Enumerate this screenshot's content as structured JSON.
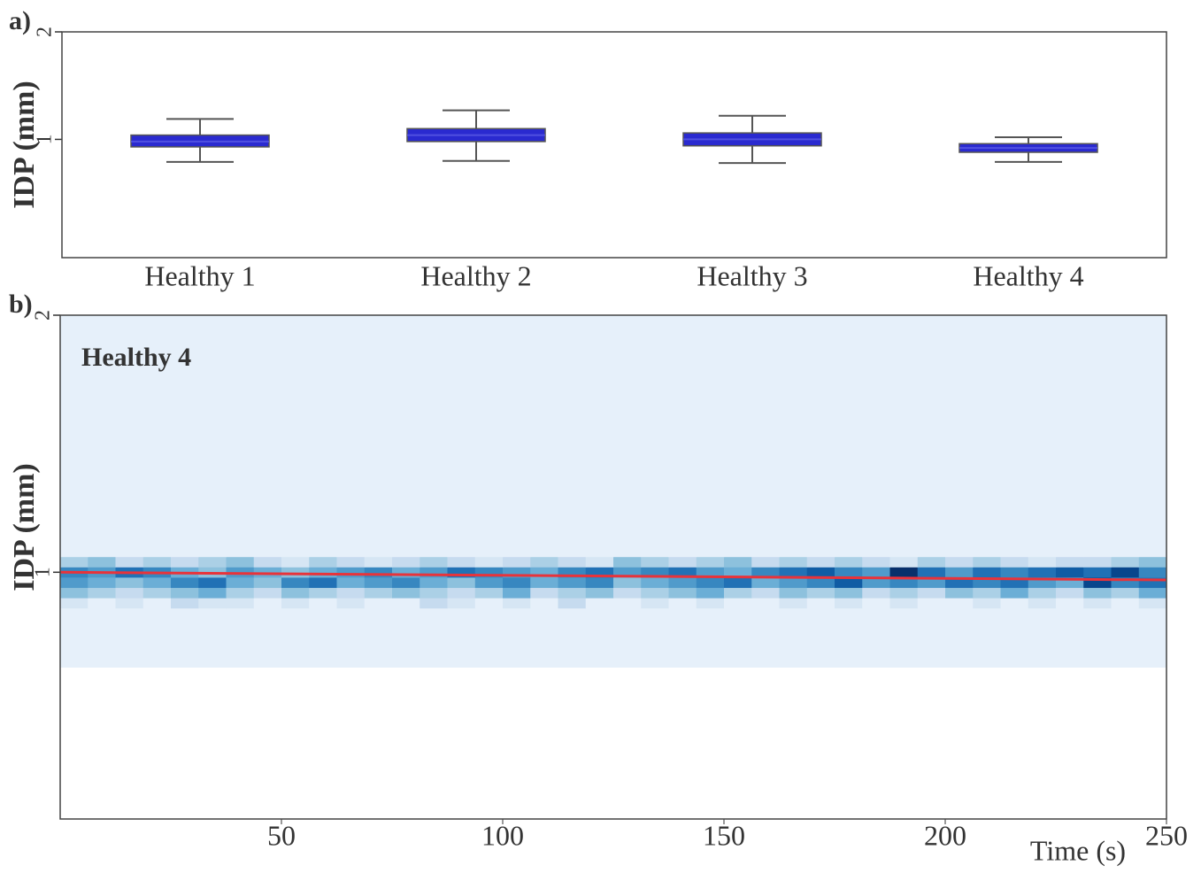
{
  "chart_data": [
    {
      "type": "box",
      "label": "a)",
      "ylabel": "IDP (mm)",
      "categories": [
        "Healthy 1",
        "Healthy 2",
        "Healthy 3",
        "Healthy 4"
      ],
      "whislo": [
        0.79,
        0.8,
        0.78,
        0.79
      ],
      "q1": [
        0.93,
        0.98,
        0.94,
        0.88
      ],
      "median": [
        0.98,
        1.04,
        1.0,
        0.92
      ],
      "q3": [
        1.04,
        1.1,
        1.06,
        0.96
      ],
      "whishi": [
        1.19,
        1.27,
        1.22,
        1.02
      ],
      "color": "#2a2ad0",
      "ylim": [
        -0.1,
        2
      ],
      "yticks": [
        1,
        2
      ]
    },
    {
      "type": "heatmap",
      "label": "b)",
      "ylabel": "IDP (mm)",
      "xlabel": "Time (s)",
      "annotation": "Healthy 4",
      "colormap": "Blues",
      "xbins": [
        0,
        6.25,
        12.5,
        18.75,
        25,
        31.25,
        37.5,
        43.75,
        50,
        56.25,
        62.5,
        68.75,
        75,
        81.25,
        87.5,
        93.75,
        100,
        106.25,
        112.5,
        118.75,
        125,
        131.25,
        137.5,
        143.75,
        150,
        156.25,
        162.5,
        168.75,
        175,
        181.25,
        187.5,
        193.75,
        200,
        206.25,
        212.5,
        218.75,
        225,
        231.25,
        237.5,
        243.75,
        250
      ],
      "ybins": [
        0.63,
        0.86,
        0.9,
        0.94,
        0.98,
        1.02,
        1.06,
        2.0
      ],
      "z": [
        [
          1,
          1,
          1,
          1,
          1,
          1,
          1,
          1,
          1,
          1,
          1,
          1,
          1,
          1,
          1,
          1,
          1,
          1,
          1,
          1,
          1,
          1,
          1,
          1,
          1,
          1,
          1,
          1,
          1,
          1,
          1,
          1,
          1,
          1,
          1,
          1,
          1,
          1,
          1,
          1
        ],
        [
          2,
          1,
          2,
          1,
          3,
          2,
          2,
          1,
          2,
          1,
          2,
          1,
          1,
          3,
          2,
          1,
          2,
          1,
          3,
          1,
          1,
          2,
          1,
          2,
          1,
          1,
          2,
          1,
          2,
          1,
          2,
          1,
          1,
          2,
          1,
          2,
          1,
          2,
          1,
          2
        ],
        [
          5,
          4,
          3,
          4,
          5,
          6,
          4,
          3,
          5,
          4,
          3,
          4,
          5,
          4,
          3,
          4,
          6,
          3,
          4,
          5,
          3,
          4,
          5,
          6,
          4,
          3,
          5,
          4,
          5,
          3,
          4,
          3,
          5,
          4,
          6,
          4,
          3,
          5,
          4,
          6
        ],
        [
          7,
          6,
          5,
          6,
          8,
          9,
          6,
          5,
          8,
          9,
          6,
          7,
          8,
          6,
          5,
          7,
          8,
          6,
          7,
          8,
          5,
          6,
          7,
          8,
          9,
          6,
          7,
          8,
          10,
          7,
          8,
          7,
          9,
          8,
          9,
          7,
          6,
          11,
          8,
          9
        ],
        [
          8,
          7,
          9,
          8,
          6,
          5,
          7,
          6,
          5,
          6,
          7,
          8,
          6,
          7,
          9,
          8,
          7,
          6,
          8,
          9,
          7,
          8,
          9,
          7,
          6,
          8,
          9,
          10,
          8,
          7,
          12,
          9,
          7,
          9,
          8,
          9,
          10,
          9,
          11,
          8
        ],
        [
          4,
          5,
          3,
          4,
          3,
          4,
          5,
          3,
          2,
          4,
          3,
          2,
          3,
          4,
          3,
          2,
          3,
          4,
          3,
          2,
          5,
          4,
          3,
          4,
          5,
          3,
          4,
          3,
          4,
          3,
          2,
          4,
          3,
          4,
          3,
          2,
          3,
          3,
          4,
          5
        ],
        [
          1,
          1,
          1,
          1,
          1,
          1,
          1,
          1,
          1,
          1,
          1,
          1,
          1,
          1,
          1,
          1,
          1,
          1,
          1,
          1,
          1,
          1,
          1,
          1,
          1,
          1,
          1,
          1,
          1,
          1,
          1,
          1,
          1,
          1,
          1,
          1,
          1,
          1,
          1,
          1
        ]
      ],
      "trend": {
        "x": [
          0,
          250
        ],
        "values": [
          1.0,
          0.97
        ],
        "color": "#e8333a"
      },
      "xlim": [
        0,
        250
      ],
      "xticks": [
        50,
        100,
        150,
        200,
        250
      ],
      "ylim": [
        0.04,
        2
      ],
      "yticks": [
        1,
        2
      ]
    }
  ]
}
